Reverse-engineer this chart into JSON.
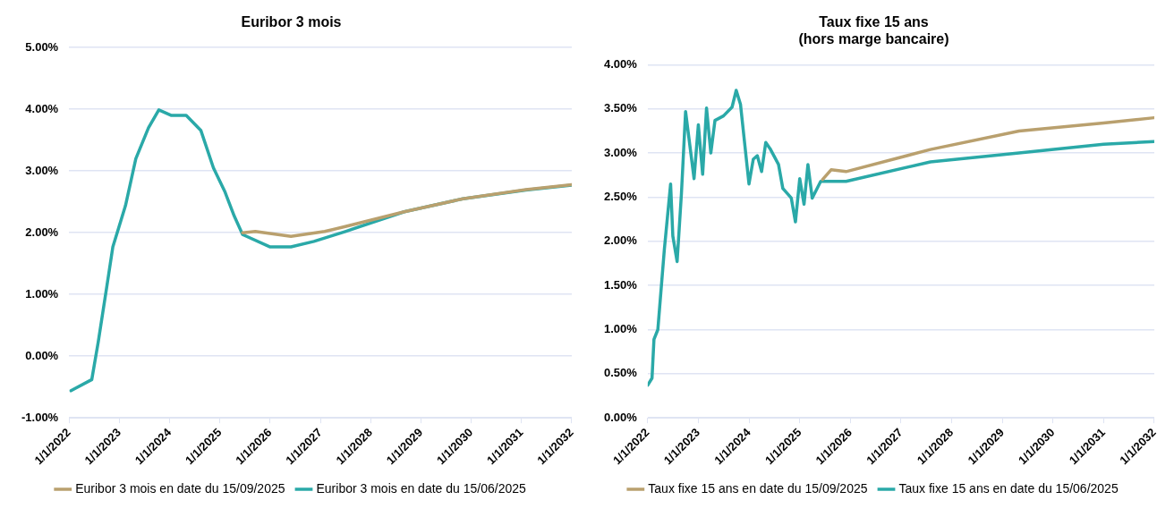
{
  "chart_data": [
    {
      "type": "line",
      "title": "Euribor 3 mois",
      "legend": "bottom",
      "grid": "y",
      "marker": "none",
      "line_style": "solid",
      "xlim": [
        "2022-01-01",
        "2032-01-01"
      ],
      "xticks": [
        {
          "value": "2022-01-01",
          "label": "1/1/2022"
        },
        {
          "value": "2023-01-01",
          "label": "1/1/2023"
        },
        {
          "value": "2024-01-01",
          "label": "1/1/2024"
        },
        {
          "value": "2025-01-01",
          "label": "1/1/2025"
        },
        {
          "value": "2026-01-01",
          "label": "1/1/2026"
        },
        {
          "value": "2027-01-01",
          "label": "1/1/2027"
        },
        {
          "value": "2028-01-01",
          "label": "1/1/2028"
        },
        {
          "value": "2029-01-01",
          "label": "1/1/2029"
        },
        {
          "value": "2030-01-01",
          "label": "1/1/2030"
        },
        {
          "value": "2031-01-01",
          "label": "1/1/2031"
        },
        {
          "value": "2032-01-01",
          "label": "1/1/2032"
        }
      ],
      "ylim": [
        -1,
        5
      ],
      "yticks": [
        {
          "value": -1,
          "label": "-1.00%"
        },
        {
          "value": 0,
          "label": "0.00%"
        },
        {
          "value": 1,
          "label": "1.00%"
        },
        {
          "value": 2,
          "label": "2.00%"
        },
        {
          "value": 3,
          "label": "3.00%"
        },
        {
          "value": 4,
          "label": "4.00%"
        },
        {
          "value": 5,
          "label": "5.00%"
        }
      ],
      "series": [
        {
          "name": "Euribor 3 mois en date du 15/09/2025",
          "color": "#b9a06e",
          "x": [
            "2025-06-15",
            "2025-09-15",
            "2026-06-01",
            "2027-02-01",
            "2027-07-01",
            "2028-09-01",
            "2029-11-01",
            "2031-02-01",
            "2032-01-01"
          ],
          "values": [
            2.0,
            2.02,
            1.94,
            2.02,
            2.1,
            2.34,
            2.55,
            2.7,
            2.78
          ]
        },
        {
          "name": "Euribor 3 mois en date du 15/06/2025",
          "color": "#2aa9a8",
          "x": [
            "2022-01-15",
            "2022-06-15",
            "2022-08-01",
            "2022-10-01",
            "2022-11-15",
            "2023-02-15",
            "2023-05-01",
            "2023-08-01",
            "2023-10-15",
            "2024-01-15",
            "2024-05-01",
            "2024-08-15",
            "2024-11-15",
            "2025-02-05",
            "2025-04-15",
            "2025-06-15",
            "2026-01-01",
            "2026-06-01",
            "2026-11-15",
            "2027-07-01",
            "2028-09-01",
            "2029-11-01",
            "2031-02-01",
            "2032-01-01"
          ],
          "values": [
            -0.56,
            -0.38,
            0.23,
            1.11,
            1.77,
            2.44,
            3.2,
            3.7,
            3.99,
            3.9,
            3.9,
            3.66,
            3.05,
            2.67,
            2.27,
            1.97,
            1.77,
            1.77,
            1.86,
            2.02,
            2.34,
            2.55,
            2.69,
            2.77
          ]
        }
      ]
    },
    {
      "type": "line",
      "title": "Taux fixe 15 ans\n(hors marge bancaire)",
      "legend": "bottom",
      "grid": "y",
      "marker": "none",
      "line_style": "solid",
      "xlim": [
        "2022-01-01",
        "2032-01-01"
      ],
      "xticks": [
        {
          "value": "2022-01-01",
          "label": "1/1/2022"
        },
        {
          "value": "2023-01-01",
          "label": "1/1/2023"
        },
        {
          "value": "2024-01-01",
          "label": "1/1/2024"
        },
        {
          "value": "2025-01-01",
          "label": "1/1/2025"
        },
        {
          "value": "2026-01-01",
          "label": "1/1/2026"
        },
        {
          "value": "2027-01-01",
          "label": "1/1/2027"
        },
        {
          "value": "2028-01-01",
          "label": "1/1/2028"
        },
        {
          "value": "2029-01-01",
          "label": "1/1/2029"
        },
        {
          "value": "2030-01-01",
          "label": "1/1/2030"
        },
        {
          "value": "2031-01-01",
          "label": "1/1/2031"
        },
        {
          "value": "2032-01-01",
          "label": "1/1/2032"
        }
      ],
      "ylim": [
        0,
        4
      ],
      "yticks": [
        {
          "value": 0,
          "label": "0.00%"
        },
        {
          "value": 0.5,
          "label": "0.50%"
        },
        {
          "value": 1,
          "label": "1.00%"
        },
        {
          "value": 1.5,
          "label": "1.50%"
        },
        {
          "value": 2,
          "label": "2.00%"
        },
        {
          "value": 2.5,
          "label": "2.50%"
        },
        {
          "value": 3,
          "label": "3.00%"
        },
        {
          "value": 3.5,
          "label": "3.50%"
        },
        {
          "value": 4,
          "label": "4.00%"
        }
      ],
      "series": [
        {
          "name": "Taux fixe 15 ans en date du 15/09/2025",
          "color": "#b9a06e",
          "x": [
            "2025-06-15",
            "2025-08-15",
            "2025-12-01",
            "2027-08-01",
            "2029-05-01",
            "2031-01-01",
            "2032-01-01"
          ],
          "values": [
            2.7,
            2.81,
            2.79,
            3.04,
            3.25,
            3.34,
            3.4
          ]
        },
        {
          "name": "Taux fixe 15 ans en date du 15/06/2025",
          "color": "#2aa9a8",
          "x": [
            "2022-01-01",
            "2022-02-01",
            "2022-02-15",
            "2022-03-15",
            "2022-05-01",
            "2022-06-15",
            "2022-07-01",
            "2022-08-01",
            "2022-09-01",
            "2022-10-01",
            "2022-12-01",
            "2023-01-01",
            "2023-02-01",
            "2023-03-01",
            "2023-04-01",
            "2023-05-01",
            "2023-07-01",
            "2023-09-01",
            "2023-10-01",
            "2023-11-01",
            "2024-01-01",
            "2024-02-01",
            "2024-03-01",
            "2024-04-01",
            "2024-05-01",
            "2024-06-01",
            "2024-08-01",
            "2024-09-01",
            "2024-11-01",
            "2024-12-01",
            "2025-01-01",
            "2025-02-01",
            "2025-03-01",
            "2025-04-01",
            "2025-06-01",
            "2025-12-01",
            "2027-08-01",
            "2029-05-01",
            "2031-01-01",
            "2032-01-01"
          ],
          "values": [
            0.37,
            0.45,
            0.89,
            1.0,
            1.91,
            2.65,
            2.06,
            1.77,
            2.54,
            3.47,
            2.71,
            3.32,
            2.76,
            3.51,
            3.0,
            3.37,
            3.42,
            3.52,
            3.71,
            3.55,
            2.65,
            2.93,
            2.97,
            2.79,
            3.12,
            3.05,
            2.87,
            2.6,
            2.49,
            2.22,
            2.71,
            2.42,
            2.87,
            2.49,
            2.68,
            2.68,
            2.9,
            3.0,
            3.1,
            3.13
          ]
        }
      ]
    }
  ]
}
